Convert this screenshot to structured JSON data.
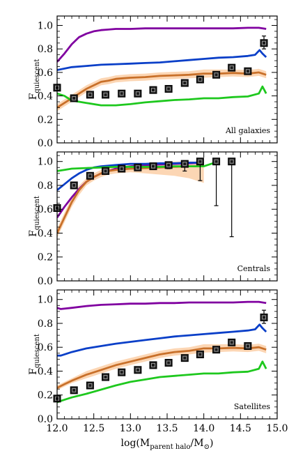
{
  "figure": {
    "xlabel": {
      "main": "log(M",
      "sub": "parent halo",
      "mid": "/M",
      "sun": "⊙",
      "close": ")"
    },
    "ylabel": {
      "main": "F",
      "sub": "quiescent"
    },
    "x_ticks": [
      "12.0",
      "12.5",
      "13.0",
      "13.5",
      "14.0",
      "14.5",
      "15.0"
    ],
    "y_ticks": [
      "0.0",
      "0.2",
      "0.4",
      "0.6",
      "0.8",
      "1.0"
    ]
  },
  "colors": {
    "purple": "#8000a0",
    "blue": "#0a3fc8",
    "orange": "#c8702a",
    "green": "#1ec81e",
    "band": "#fcd6b4",
    "marker": "#000000"
  },
  "chart_data": [
    {
      "type": "line",
      "label": "All galaxies",
      "xlim": [
        12.0,
        15.0
      ],
      "ylim": [
        0.0,
        1.08
      ],
      "grid": false,
      "series": [
        {
          "color": "purple",
          "x": [
            12.0,
            12.1,
            12.2,
            12.3,
            12.4,
            12.5,
            12.6,
            12.7,
            12.8,
            12.9,
            13.0,
            13.2,
            13.4,
            13.6,
            13.8,
            14.0,
            14.2,
            14.4,
            14.6,
            14.75,
            14.85
          ],
          "values": [
            0.69,
            0.76,
            0.84,
            0.9,
            0.93,
            0.95,
            0.96,
            0.965,
            0.97,
            0.97,
            0.97,
            0.975,
            0.975,
            0.975,
            0.975,
            0.975,
            0.975,
            0.975,
            0.98,
            0.98,
            0.97
          ]
        },
        {
          "color": "blue",
          "x": [
            12.0,
            12.2,
            12.4,
            12.6,
            12.8,
            13.0,
            13.2,
            13.4,
            13.6,
            13.8,
            14.0,
            14.2,
            14.4,
            14.6,
            14.7,
            14.76,
            14.8,
            14.85
          ],
          "values": [
            0.62,
            0.645,
            0.655,
            0.665,
            0.67,
            0.675,
            0.68,
            0.685,
            0.695,
            0.705,
            0.715,
            0.725,
            0.73,
            0.74,
            0.75,
            0.79,
            0.76,
            0.73
          ]
        },
        {
          "color": "orange",
          "band": true,
          "x": [
            12.0,
            12.1,
            12.2,
            12.3,
            12.4,
            12.5,
            12.6,
            12.7,
            12.8,
            12.9,
            13.0,
            13.2,
            13.4,
            13.6,
            13.8,
            14.0,
            14.2,
            14.4,
            14.6,
            14.75,
            14.85
          ],
          "values": [
            0.3,
            0.34,
            0.38,
            0.42,
            0.46,
            0.49,
            0.52,
            0.53,
            0.545,
            0.55,
            0.555,
            0.56,
            0.57,
            0.575,
            0.58,
            0.59,
            0.59,
            0.595,
            0.59,
            0.6,
            0.58
          ],
          "lower": [
            0.27,
            0.31,
            0.35,
            0.39,
            0.43,
            0.46,
            0.49,
            0.5,
            0.515,
            0.52,
            0.525,
            0.53,
            0.54,
            0.545,
            0.55,
            0.555,
            0.56,
            0.565,
            0.56,
            0.57,
            0.55
          ],
          "upper": [
            0.33,
            0.37,
            0.41,
            0.45,
            0.49,
            0.52,
            0.55,
            0.56,
            0.575,
            0.58,
            0.585,
            0.59,
            0.6,
            0.605,
            0.61,
            0.625,
            0.625,
            0.625,
            0.62,
            0.63,
            0.61
          ]
        },
        {
          "color": "green",
          "x": [
            12.0,
            12.1,
            12.2,
            12.4,
            12.6,
            12.8,
            13.0,
            13.2,
            13.4,
            13.6,
            13.8,
            14.0,
            14.2,
            14.4,
            14.6,
            14.75,
            14.8,
            14.85
          ],
          "values": [
            0.42,
            0.4,
            0.36,
            0.34,
            0.32,
            0.32,
            0.33,
            0.345,
            0.355,
            0.365,
            0.37,
            0.38,
            0.38,
            0.39,
            0.395,
            0.42,
            0.48,
            0.42
          ]
        }
      ],
      "points": [
        {
          "x": 12.0,
          "y": 0.47
        },
        {
          "x": 12.23,
          "y": 0.38
        },
        {
          "x": 12.45,
          "y": 0.41
        },
        {
          "x": 12.66,
          "y": 0.41
        },
        {
          "x": 12.88,
          "y": 0.42
        },
        {
          "x": 13.1,
          "y": 0.42
        },
        {
          "x": 13.31,
          "y": 0.45
        },
        {
          "x": 13.52,
          "y": 0.46
        },
        {
          "x": 13.74,
          "y": 0.51
        },
        {
          "x": 13.95,
          "y": 0.54
        },
        {
          "x": 14.17,
          "y": 0.58
        },
        {
          "x": 14.38,
          "y": 0.64
        },
        {
          "x": 14.6,
          "y": 0.61
        },
        {
          "x": 14.82,
          "y": 0.85,
          "err_lo": 0.05,
          "err_hi": 0.06
        }
      ]
    },
    {
      "type": "line",
      "label": "Centrals",
      "xlim": [
        12.0,
        15.0
      ],
      "ylim": [
        0.0,
        1.08
      ],
      "grid": false,
      "series": [
        {
          "color": "purple",
          "x": [
            12.0,
            12.1,
            12.2,
            12.3,
            12.4,
            12.5,
            12.6,
            12.7,
            12.8,
            12.9,
            13.0,
            13.2,
            13.4,
            13.6,
            13.8,
            14.0
          ],
          "values": [
            0.53,
            0.62,
            0.7,
            0.77,
            0.83,
            0.87,
            0.9,
            0.92,
            0.94,
            0.95,
            0.96,
            0.97,
            0.975,
            0.98,
            0.985,
            0.99
          ]
        },
        {
          "color": "blue",
          "x": [
            12.0,
            12.1,
            12.2,
            12.3,
            12.4,
            12.5,
            12.6,
            12.8,
            13.0,
            13.2,
            13.4,
            13.6,
            13.8,
            14.0
          ],
          "values": [
            0.76,
            0.81,
            0.86,
            0.9,
            0.93,
            0.95,
            0.96,
            0.97,
            0.98,
            0.98,
            0.985,
            0.985,
            0.99,
            0.99
          ]
        },
        {
          "color": "orange",
          "band": true,
          "x": [
            12.0,
            12.1,
            12.2,
            12.3,
            12.4,
            12.5,
            12.6,
            12.7,
            12.8,
            13.0,
            13.2,
            13.4,
            13.6,
            13.8,
            14.0
          ],
          "values": [
            0.4,
            0.53,
            0.66,
            0.76,
            0.83,
            0.87,
            0.9,
            0.92,
            0.93,
            0.94,
            0.945,
            0.95,
            0.955,
            0.96,
            0.96
          ],
          "lower": [
            0.36,
            0.49,
            0.62,
            0.72,
            0.8,
            0.84,
            0.87,
            0.89,
            0.9,
            0.91,
            0.9,
            0.89,
            0.88,
            0.86,
            0.82
          ],
          "upper": [
            0.44,
            0.57,
            0.7,
            0.8,
            0.86,
            0.9,
            0.93,
            0.95,
            0.96,
            0.97,
            0.98,
            0.99,
            1.0,
            1.0,
            1.0
          ]
        },
        {
          "color": "green",
          "x": [
            12.0,
            12.1,
            12.2,
            12.4,
            12.6,
            12.8,
            13.0,
            13.2,
            13.4,
            13.6,
            13.8,
            14.0,
            14.2
          ],
          "values": [
            0.92,
            0.93,
            0.94,
            0.945,
            0.95,
            0.955,
            0.955,
            0.955,
            0.955,
            0.96,
            0.96,
            0.96,
            1.0
          ]
        }
      ],
      "points": [
        {
          "x": 12.0,
          "y": 0.61
        },
        {
          "x": 12.23,
          "y": 0.8
        },
        {
          "x": 12.45,
          "y": 0.88
        },
        {
          "x": 12.66,
          "y": 0.92
        },
        {
          "x": 12.88,
          "y": 0.94
        },
        {
          "x": 13.1,
          "y": 0.95
        },
        {
          "x": 13.31,
          "y": 0.96,
          "err_lo": 0.02,
          "err_hi": 0.02
        },
        {
          "x": 13.52,
          "y": 0.97,
          "err_lo": 0.03,
          "err_hi": 0.02
        },
        {
          "x": 13.74,
          "y": 0.98,
          "err_lo": 0.06,
          "err_hi": 0.02
        },
        {
          "x": 13.95,
          "y": 1.0,
          "err_lo": 0.16,
          "err_hi": 0.0
        },
        {
          "x": 14.17,
          "y": 1.0,
          "err_lo": 0.37,
          "err_hi": 0.0
        },
        {
          "x": 14.38,
          "y": 1.0,
          "err_lo": 0.63,
          "err_hi": 0.0
        }
      ]
    },
    {
      "type": "line",
      "label": "Satellites",
      "xlim": [
        12.0,
        15.0
      ],
      "ylim": [
        0.0,
        1.08
      ],
      "grid": false,
      "series": [
        {
          "color": "purple",
          "x": [
            12.0,
            12.05,
            12.2,
            12.4,
            12.6,
            12.8,
            13.0,
            13.2,
            13.4,
            13.6,
            13.8,
            14.0,
            14.2,
            14.4,
            14.6,
            14.75,
            14.85
          ],
          "values": [
            0.93,
            0.92,
            0.93,
            0.945,
            0.955,
            0.96,
            0.965,
            0.965,
            0.97,
            0.97,
            0.975,
            0.975,
            0.975,
            0.975,
            0.98,
            0.98,
            0.97
          ]
        },
        {
          "color": "blue",
          "x": [
            12.0,
            12.05,
            12.2,
            12.4,
            12.6,
            12.8,
            13.0,
            13.2,
            13.4,
            13.6,
            13.8,
            14.0,
            14.2,
            14.4,
            14.6,
            14.7,
            14.76,
            14.8,
            14.85
          ],
          "values": [
            0.53,
            0.53,
            0.56,
            0.59,
            0.61,
            0.63,
            0.645,
            0.66,
            0.675,
            0.69,
            0.7,
            0.71,
            0.72,
            0.73,
            0.74,
            0.75,
            0.79,
            0.76,
            0.73
          ]
        },
        {
          "color": "orange",
          "band": true,
          "x": [
            12.0,
            12.1,
            12.2,
            12.4,
            12.6,
            12.8,
            13.0,
            13.2,
            13.4,
            13.6,
            13.8,
            14.0,
            14.2,
            14.4,
            14.6,
            14.75,
            14.85
          ],
          "values": [
            0.26,
            0.29,
            0.32,
            0.37,
            0.41,
            0.45,
            0.48,
            0.51,
            0.54,
            0.56,
            0.57,
            0.59,
            0.59,
            0.595,
            0.59,
            0.6,
            0.58
          ],
          "lower": [
            0.24,
            0.27,
            0.3,
            0.34,
            0.38,
            0.42,
            0.45,
            0.48,
            0.51,
            0.53,
            0.54,
            0.555,
            0.56,
            0.565,
            0.56,
            0.57,
            0.55
          ],
          "upper": [
            0.28,
            0.31,
            0.34,
            0.4,
            0.44,
            0.48,
            0.51,
            0.54,
            0.57,
            0.59,
            0.6,
            0.625,
            0.625,
            0.625,
            0.62,
            0.63,
            0.61
          ]
        },
        {
          "color": "green",
          "x": [
            12.0,
            12.1,
            12.2,
            12.4,
            12.6,
            12.8,
            13.0,
            13.2,
            13.4,
            13.6,
            13.8,
            14.0,
            14.2,
            14.4,
            14.6,
            14.75,
            14.8,
            14.85
          ],
          "values": [
            0.14,
            0.16,
            0.18,
            0.21,
            0.245,
            0.28,
            0.31,
            0.33,
            0.35,
            0.36,
            0.37,
            0.38,
            0.38,
            0.39,
            0.395,
            0.42,
            0.48,
            0.42
          ]
        }
      ],
      "points": [
        {
          "x": 12.0,
          "y": 0.17
        },
        {
          "x": 12.23,
          "y": 0.24
        },
        {
          "x": 12.45,
          "y": 0.28
        },
        {
          "x": 12.66,
          "y": 0.35
        },
        {
          "x": 12.88,
          "y": 0.39
        },
        {
          "x": 13.1,
          "y": 0.41
        },
        {
          "x": 13.31,
          "y": 0.45
        },
        {
          "x": 13.52,
          "y": 0.47
        },
        {
          "x": 13.74,
          "y": 0.51
        },
        {
          "x": 13.95,
          "y": 0.54
        },
        {
          "x": 14.17,
          "y": 0.58
        },
        {
          "x": 14.38,
          "y": 0.64
        },
        {
          "x": 14.6,
          "y": 0.61
        },
        {
          "x": 14.82,
          "y": 0.85,
          "err_lo": 0.05,
          "err_hi": 0.06
        }
      ]
    }
  ]
}
